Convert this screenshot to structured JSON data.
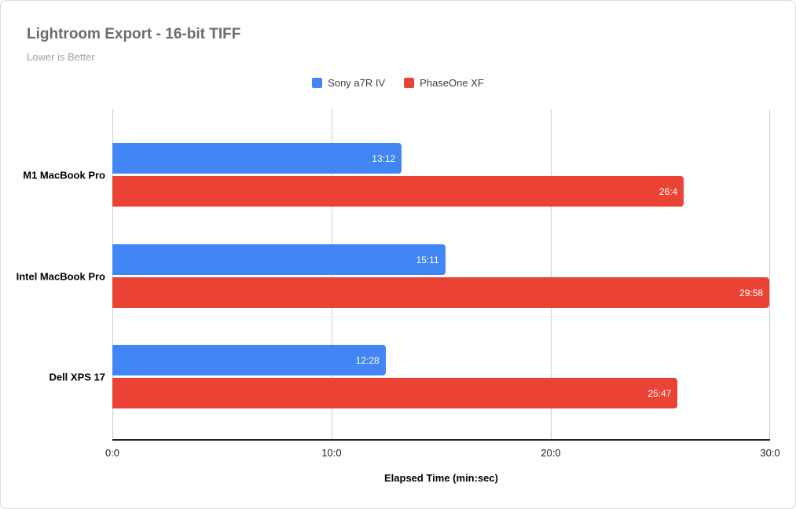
{
  "chart_data": {
    "type": "bar",
    "orientation": "horizontal",
    "title": "Lightroom Export - 16-bit TIFF",
    "subtitle": "Lower is Better",
    "categories": [
      "M1 MacBook Pro",
      "Intel MacBook Pro",
      "Dell XPS 17"
    ],
    "series": [
      {
        "name": "Sony a7R IV",
        "color": "#4285F4",
        "labels": [
          "13:12",
          "15:11",
          "12:28"
        ],
        "values_min": [
          13.2,
          15.183,
          12.467
        ]
      },
      {
        "name": "PhaseOne XF",
        "color": "#EA4335",
        "labels": [
          "26:4",
          "29:58",
          "25:47"
        ],
        "values_min": [
          26.067,
          29.967,
          25.783
        ]
      }
    ],
    "xlabel": "Elapsed Time (min:sec)",
    "x_ticks": [
      "0:0",
      "10:0",
      "20:0",
      "30:0"
    ],
    "xlim": [
      0,
      30
    ],
    "grid": true,
    "legend_position": "top",
    "colors": {
      "grid": "#cccccc",
      "axis_line": "#212121",
      "title_text": "#6b6b6b",
      "subtitle_text": "#9e9e9e",
      "bar_value_text": "#ffffff"
    }
  }
}
